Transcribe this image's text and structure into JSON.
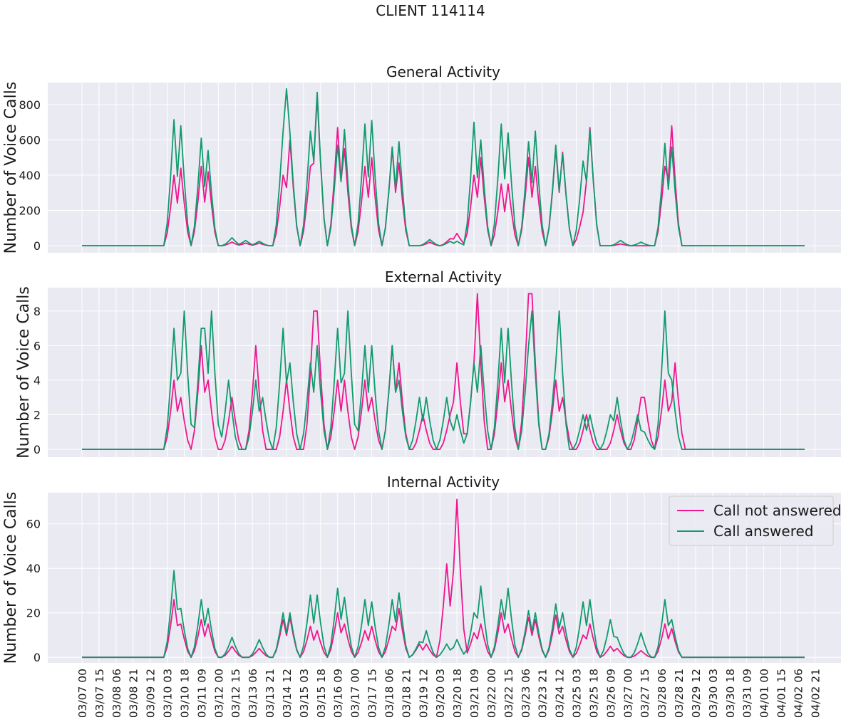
{
  "figure": {
    "title": "CLIENT 114114"
  },
  "legend": {
    "items": [
      {
        "label": "Call not answered",
        "color": "#F0158F"
      },
      {
        "label": "Call answered",
        "color": "#119A6C"
      }
    ]
  },
  "chart_data": [
    {
      "type": "line",
      "title": "General Activity",
      "ylabel": "Number of Voice Calls",
      "xlabel": "",
      "ylim": [
        -40,
        925
      ],
      "yticks": [
        0,
        200,
        400,
        600,
        800
      ],
      "grid": true,
      "x_start": "2023-03-07 00:00",
      "x_end": "2023-04-02 21:00",
      "x_step_hours": 3,
      "series": [
        {
          "name": "Call not answered",
          "color": "#F0158F",
          "peaks": [
            [
              "03/10 08",
              400
            ],
            [
              "03/10 14",
              440
            ],
            [
              "03/11 10",
              450
            ],
            [
              "03/11 14",
              420
            ],
            [
              "03/12 12",
              20
            ],
            [
              "03/13 00",
              15
            ],
            [
              "03/13 12",
              15
            ],
            [
              "03/14 09",
              400
            ],
            [
              "03/14 14",
              600
            ],
            [
              "03/15 09",
              450
            ],
            [
              "03/15 14",
              850
            ],
            [
              "03/16 09",
              670
            ],
            [
              "03/16 14",
              550
            ],
            [
              "03/17 09",
              450
            ],
            [
              "03/17 14",
              500
            ],
            [
              "03/18 09",
              550
            ],
            [
              "03/18 14",
              470
            ],
            [
              "03/19 18",
              20
            ],
            [
              "03/20 12",
              40
            ],
            [
              "03/20 18",
              70
            ],
            [
              "03/21 09",
              400
            ],
            [
              "03/21 14",
              500
            ],
            [
              "03/22 09",
              350
            ],
            [
              "03/22 14",
              350
            ],
            [
              "03/23 09",
              500
            ],
            [
              "03/23 14",
              450
            ],
            [
              "03/24 09",
              550
            ],
            [
              "03/24 14",
              530
            ],
            [
              "03/25 09",
              190
            ],
            [
              "03/25 14",
              670
            ],
            [
              "03/26 18",
              10
            ],
            [
              "03/28 09",
              450
            ],
            [
              "03/28 14",
              680
            ]
          ]
        },
        {
          "name": "Call answered",
          "color": "#119A6C",
          "peaks": [
            [
              "03/10 08",
              715
            ],
            [
              "03/10 14",
              680
            ],
            [
              "03/11 10",
              610
            ],
            [
              "03/11 14",
              540
            ],
            [
              "03/12 12",
              45
            ],
            [
              "03/13 00",
              30
            ],
            [
              "03/13 12",
              25
            ],
            [
              "03/14 09",
              650
            ],
            [
              "03/14 12",
              890
            ],
            [
              "03/14 15",
              640
            ],
            [
              "03/15 09",
              650
            ],
            [
              "03/15 14",
              870
            ],
            [
              "03/16 09",
              570
            ],
            [
              "03/16 14",
              660
            ],
            [
              "03/17 09",
              690
            ],
            [
              "03/17 14",
              710
            ],
            [
              "03/18 09",
              560
            ],
            [
              "03/18 14",
              590
            ],
            [
              "03/19 18",
              35
            ],
            [
              "03/20 12",
              25
            ],
            [
              "03/20 18",
              25
            ],
            [
              "03/21 09",
              700
            ],
            [
              "03/21 14",
              600
            ],
            [
              "03/22 09",
              690
            ],
            [
              "03/22 14",
              640
            ],
            [
              "03/23 09",
              590
            ],
            [
              "03/23 14",
              650
            ],
            [
              "03/24 09",
              570
            ],
            [
              "03/24 14",
              520
            ],
            [
              "03/25 09",
              480
            ],
            [
              "03/25 14",
              660
            ],
            [
              "03/26 18",
              30
            ],
            [
              "03/27 12",
              20
            ],
            [
              "03/28 09",
              580
            ],
            [
              "03/28 14",
              560
            ]
          ]
        }
      ]
    },
    {
      "type": "line",
      "title": "External Activity",
      "ylabel": "Number of Voice Calls",
      "xlabel": "",
      "ylim": [
        -0.45,
        9.35
      ],
      "yticks": [
        0,
        2,
        4,
        6,
        8
      ],
      "grid": true,
      "x_start": "2023-03-07 00:00",
      "x_end": "2023-04-02 21:00",
      "x_step_hours": 3,
      "series": [
        {
          "name": "Call not answered",
          "color": "#F0158F",
          "peaks": [
            [
              "03/10 09",
              4
            ],
            [
              "03/10 15",
              3
            ],
            [
              "03/11 10",
              6
            ],
            [
              "03/11 15",
              4
            ],
            [
              "03/12 12",
              3
            ],
            [
              "03/13 09",
              6
            ],
            [
              "03/14 12",
              4
            ],
            [
              "03/15 12",
              8
            ],
            [
              "03/15 15",
              8
            ],
            [
              "03/16 09",
              4
            ],
            [
              "03/16 15",
              4
            ],
            [
              "03/17 09",
              4
            ],
            [
              "03/17 15",
              3
            ],
            [
              "03/18 09",
              6
            ],
            [
              "03/18 15",
              5
            ],
            [
              "03/19 12",
              2
            ],
            [
              "03/20 12",
              2
            ],
            [
              "03/20 18",
              5
            ],
            [
              "03/21 09",
              5
            ],
            [
              "03/21 12",
              9
            ],
            [
              "03/22 09",
              5
            ],
            [
              "03/22 15",
              4
            ],
            [
              "03/23 09",
              9
            ],
            [
              "03/23 12",
              9
            ],
            [
              "03/24 09",
              4
            ],
            [
              "03/24 15",
              3
            ],
            [
              "03/25 12",
              2
            ],
            [
              "03/26 15",
              2
            ],
            [
              "03/27 12",
              3
            ],
            [
              "03/27 15",
              3
            ],
            [
              "03/28 09",
              4
            ],
            [
              "03/28 18",
              5
            ]
          ]
        },
        {
          "name": "Call answered",
          "color": "#119A6C",
          "peaks": [
            [
              "03/10 09",
              7
            ],
            [
              "03/10 12",
              4
            ],
            [
              "03/10 18",
              8
            ],
            [
              "03/11 09",
              7
            ],
            [
              "03/11 12",
              7
            ],
            [
              "03/11 18",
              8
            ],
            [
              "03/12 09",
              4
            ],
            [
              "03/13 09",
              4
            ],
            [
              "03/13 15",
              3
            ],
            [
              "03/14 09",
              7
            ],
            [
              "03/14 15",
              5
            ],
            [
              "03/15 09",
              5
            ],
            [
              "03/15 15",
              6
            ],
            [
              "03/16 09",
              7
            ],
            [
              "03/16 18",
              8
            ],
            [
              "03/17 09",
              6
            ],
            [
              "03/17 15",
              6
            ],
            [
              "03/18 09",
              6
            ],
            [
              "03/18 15",
              4
            ],
            [
              "03/19 09",
              3
            ],
            [
              "03/19 15",
              3
            ],
            [
              "03/20 09",
              3
            ],
            [
              "03/20 18",
              2
            ],
            [
              "03/21 09",
              5
            ],
            [
              "03/21 15",
              6
            ],
            [
              "03/22 09",
              7
            ],
            [
              "03/22 15",
              7
            ],
            [
              "03/23 09",
              6
            ],
            [
              "03/23 12",
              8
            ],
            [
              "03/24 09",
              5
            ],
            [
              "03/24 12",
              8
            ],
            [
              "03/25 09",
              2
            ],
            [
              "03/25 15",
              2
            ],
            [
              "03/26 09",
              2
            ],
            [
              "03/26 15",
              3
            ],
            [
              "03/27 09",
              2
            ],
            [
              "03/27 15",
              1
            ],
            [
              "03/28 09",
              8
            ],
            [
              "03/28 15",
              4
            ]
          ]
        }
      ]
    },
    {
      "type": "line",
      "title": "Internal Activity",
      "ylabel": "Number of Voice Calls",
      "xlabel": "",
      "ylim": [
        -2.5,
        74
      ],
      "yticks": [
        0,
        20,
        40,
        60
      ],
      "grid": true,
      "legend_position": "top-right",
      "x_start": "2023-03-07 00:00",
      "x_end": "2023-04-02 21:00",
      "x_step_hours": 3,
      "series": [
        {
          "name": "Call not answered",
          "color": "#F0158F",
          "peaks": [
            [
              "03/10 09",
              26
            ],
            [
              "03/10 15",
              15
            ],
            [
              "03/11 09",
              17
            ],
            [
              "03/11 15",
              15
            ],
            [
              "03/12 12",
              5
            ],
            [
              "03/13 12",
              4
            ],
            [
              "03/14 09",
              17
            ],
            [
              "03/14 15",
              18
            ],
            [
              "03/15 09",
              14
            ],
            [
              "03/15 15",
              12
            ],
            [
              "03/16 09",
              20
            ],
            [
              "03/16 15",
              15
            ],
            [
              "03/17 09",
              12
            ],
            [
              "03/17 15",
              14
            ],
            [
              "03/18 09",
              14
            ],
            [
              "03/18 15",
              22
            ],
            [
              "03/19 09",
              6
            ],
            [
              "03/19 15",
              6
            ],
            [
              "03/20 09",
              42
            ],
            [
              "03/20 18",
              71
            ],
            [
              "03/21 09",
              11
            ],
            [
              "03/21 15",
              15
            ],
            [
              "03/22 09",
              20
            ],
            [
              "03/22 15",
              15
            ],
            [
              "03/23 09",
              18
            ],
            [
              "03/23 15",
              17
            ],
            [
              "03/24 09",
              19
            ],
            [
              "03/24 15",
              14
            ],
            [
              "03/25 09",
              10
            ],
            [
              "03/25 15",
              15
            ],
            [
              "03/26 09",
              5
            ],
            [
              "03/26 15",
              4
            ],
            [
              "03/27 12",
              3
            ],
            [
              "03/28 09",
              15
            ],
            [
              "03/28 15",
              13
            ]
          ]
        },
        {
          "name": "Call answered",
          "color": "#119A6C",
          "peaks": [
            [
              "03/10 09",
              39
            ],
            [
              "03/10 15",
              22
            ],
            [
              "03/11 09",
              26
            ],
            [
              "03/11 15",
              22
            ],
            [
              "03/12 12",
              9
            ],
            [
              "03/13 12",
              8
            ],
            [
              "03/14 09",
              20
            ],
            [
              "03/14 15",
              20
            ],
            [
              "03/15 09",
              28
            ],
            [
              "03/15 15",
              28
            ],
            [
              "03/16 09",
              31
            ],
            [
              "03/16 15",
              27
            ],
            [
              "03/17 09",
              26
            ],
            [
              "03/17 15",
              25
            ],
            [
              "03/18 09",
              26
            ],
            [
              "03/18 15",
              29
            ],
            [
              "03/19 09",
              7
            ],
            [
              "03/19 15",
              12
            ],
            [
              "03/20 09",
              6
            ],
            [
              "03/20 18",
              8
            ],
            [
              "03/21 09",
              20
            ],
            [
              "03/21 15",
              32
            ],
            [
              "03/22 09",
              26
            ],
            [
              "03/22 15",
              31
            ],
            [
              "03/23 09",
              21
            ],
            [
              "03/23 15",
              20
            ],
            [
              "03/24 09",
              24
            ],
            [
              "03/24 15",
              20
            ],
            [
              "03/25 09",
              25
            ],
            [
              "03/25 15",
              26
            ],
            [
              "03/26 09",
              17
            ],
            [
              "03/26 15",
              9
            ],
            [
              "03/27 12",
              11
            ],
            [
              "03/28 09",
              26
            ],
            [
              "03/28 15",
              17
            ]
          ]
        }
      ]
    }
  ],
  "x_axis": {
    "tick_labels": [
      "03/07 00",
      "03/07 15",
      "03/08 06",
      "03/08 21",
      "03/09 12",
      "03/10 03",
      "03/10 18",
      "03/11 09",
      "03/12 00",
      "03/12 15",
      "03/13 06",
      "03/13 21",
      "03/14 12",
      "03/15 03",
      "03/15 18",
      "03/16 09",
      "03/17 00",
      "03/17 15",
      "03/18 06",
      "03/18 21",
      "03/19 12",
      "03/20 03",
      "03/20 18",
      "03/21 09",
      "03/22 00",
      "03/22 15",
      "03/23 06",
      "03/23 21",
      "03/24 12",
      "03/25 03",
      "03/25 18",
      "03/26 09",
      "03/27 00",
      "03/27 15",
      "03/28 06",
      "03/28 21",
      "03/29 12",
      "03/30 03",
      "03/30 18",
      "03/31 09",
      "04/01 00",
      "04/01 15",
      "04/02 06",
      "04/02 21"
    ]
  }
}
